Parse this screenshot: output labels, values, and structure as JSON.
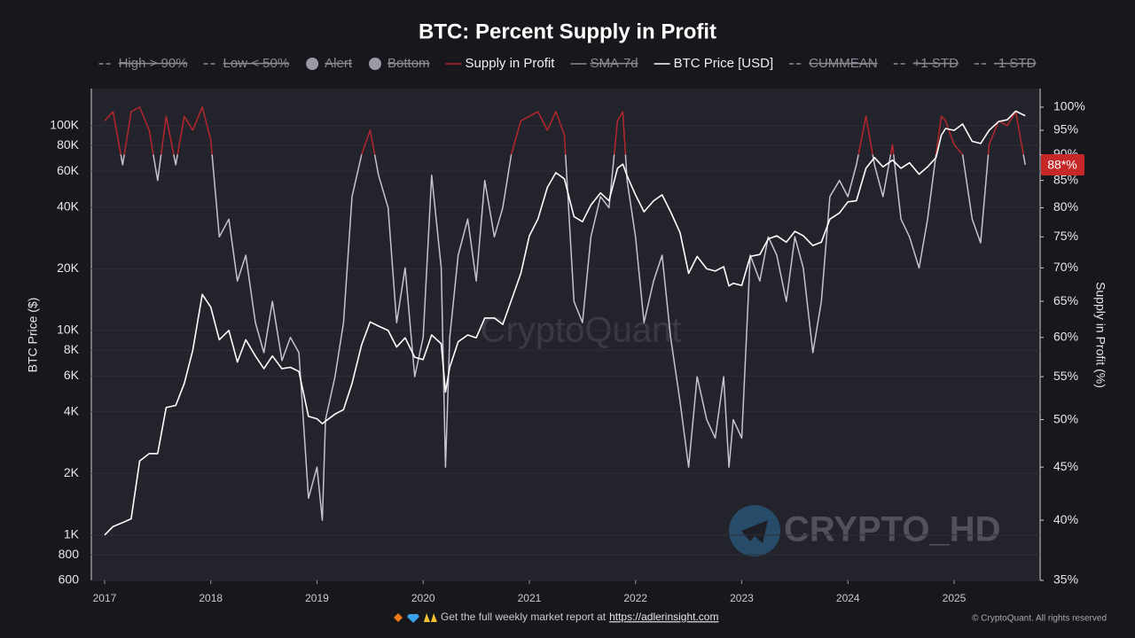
{
  "chart_data": {
    "type": "line",
    "title": "BTC: Percent Supply in Profit",
    "ylabel": "BTC Price ($)",
    "y2label": "Supply in Profit (%)",
    "log_y": true,
    "log_y2": true,
    "grid": true,
    "xlim": [
      2016.875,
      2025.81
    ],
    "xticks": [
      2017,
      2018,
      2019,
      2020,
      2021,
      2022,
      2023,
      2024,
      2025
    ],
    "ylim": [
      600,
      152000
    ],
    "yticks": [
      600,
      800,
      {
        "value": 1000,
        "label": "1K"
      },
      {
        "value": 2000,
        "label": "2K"
      },
      {
        "value": 4000,
        "label": "4K"
      },
      {
        "value": 6000,
        "label": "6K"
      },
      {
        "value": 8000,
        "label": "8K"
      },
      {
        "value": 10000,
        "label": "10K"
      },
      {
        "value": 20000,
        "label": "20K"
      },
      {
        "value": 40000,
        "label": "40K"
      },
      {
        "value": 60000,
        "label": "60K"
      },
      {
        "value": 80000,
        "label": "80K"
      },
      {
        "value": 100000,
        "label": "100K"
      }
    ],
    "y2lim": [
      35,
      104.2
    ],
    "y2ticks": [
      {
        "value": 35,
        "label": "35%"
      },
      {
        "value": 40,
        "label": "40%"
      },
      {
        "value": 45,
        "label": "45%"
      },
      {
        "value": 50,
        "label": "50%"
      },
      {
        "value": 55,
        "label": "55%"
      },
      {
        "value": 60,
        "label": "60%"
      },
      {
        "value": 65,
        "label": "65%"
      },
      {
        "value": 70,
        "label": "70%"
      },
      {
        "value": 75,
        "label": "75%"
      },
      {
        "value": 80,
        "label": "80%"
      },
      {
        "value": 85,
        "label": "85%"
      },
      {
        "value": 90,
        "label": "90%"
      },
      {
        "value": 95,
        "label": "95%"
      },
      {
        "value": 100,
        "label": "100%"
      }
    ],
    "high_threshold": 90,
    "y2_badge": {
      "value": 88,
      "label": "88*%",
      "color": "#c62828"
    },
    "x": [
      2017.0,
      2017.08,
      2017.17,
      2017.25,
      2017.33,
      2017.42,
      2017.5,
      2017.58,
      2017.67,
      2017.75,
      2017.83,
      2017.92,
      2018.0,
      2018.08,
      2018.17,
      2018.25,
      2018.33,
      2018.42,
      2018.5,
      2018.58,
      2018.67,
      2018.75,
      2018.83,
      2018.92,
      2019.0,
      2019.05,
      2019.08,
      2019.17,
      2019.25,
      2019.33,
      2019.42,
      2019.5,
      2019.58,
      2019.67,
      2019.75,
      2019.83,
      2019.92,
      2020.0,
      2020.08,
      2020.17,
      2020.21,
      2020.25,
      2020.33,
      2020.42,
      2020.5,
      2020.58,
      2020.67,
      2020.75,
      2020.83,
      2020.92,
      2021.0,
      2021.08,
      2021.17,
      2021.25,
      2021.33,
      2021.42,
      2021.5,
      2021.58,
      2021.67,
      2021.75,
      2021.83,
      2021.88,
      2021.92,
      2022.0,
      2022.08,
      2022.17,
      2022.25,
      2022.33,
      2022.42,
      2022.5,
      2022.58,
      2022.67,
      2022.75,
      2022.83,
      2022.88,
      2022.92,
      2023.0,
      2023.08,
      2023.17,
      2023.25,
      2023.33,
      2023.42,
      2023.5,
      2023.58,
      2023.67,
      2023.75,
      2023.83,
      2023.92,
      2024.0,
      2024.08,
      2024.17,
      2024.25,
      2024.33,
      2024.42,
      2024.5,
      2024.58,
      2024.67,
      2024.75,
      2024.83,
      2024.88,
      2024.92,
      2025.0,
      2025.08,
      2025.17,
      2025.25,
      2025.33,
      2025.42,
      2025.5,
      2025.58,
      2025.67
    ],
    "series": [
      {
        "name": "High > 90%",
        "color": "#8a8a95",
        "marker": "dash",
        "hidden": true
      },
      {
        "name": "Low < 50%",
        "color": "#8a8a95",
        "marker": "dash",
        "hidden": true
      },
      {
        "name": "Alert",
        "color": "#9a9aa5",
        "marker": "dot",
        "hidden": true
      },
      {
        "name": "Bottom",
        "color": "#9a9aa5",
        "marker": "dot",
        "hidden": true
      },
      {
        "name": "Supply in Profit",
        "color": "#b3262b",
        "below_color": "#c4c4d0",
        "marker": "line",
        "axis": "y2",
        "values": [
          97,
          99,
          88,
          99,
          100,
          95,
          85,
          98,
          88,
          98,
          95,
          100,
          93,
          75,
          78,
          68,
          72,
          62,
          58,
          65,
          57,
          60,
          58,
          42,
          45,
          40,
          50,
          55,
          62,
          82,
          90,
          95,
          86,
          80,
          62,
          70,
          55,
          60,
          86,
          70,
          45,
          60,
          72,
          78,
          68,
          85,
          75,
          80,
          90,
          97,
          98,
          99,
          95,
          99,
          94,
          65,
          62,
          75,
          82,
          80,
          97,
          99,
          85,
          75,
          62,
          68,
          72,
          60,
          52,
          45,
          55,
          50,
          48,
          55,
          45,
          50,
          48,
          72,
          68,
          75,
          72,
          65,
          75,
          70,
          58,
          65,
          82,
          85,
          82,
          88,
          98,
          88,
          82,
          92,
          78,
          75,
          70,
          78,
          90,
          98,
          97,
          92,
          90,
          78,
          74,
          92,
          97,
          96,
          99,
          88
        ]
      },
      {
        "name": "SMA-7d",
        "color": "#8a8a95",
        "marker": "line",
        "hidden": true
      },
      {
        "name": "BTC Price [USD]",
        "color": "#ffffff",
        "marker": "line",
        "values": [
          1000,
          1100,
          1150,
          1200,
          2300,
          2500,
          2500,
          4200,
          4300,
          5500,
          8000,
          15000,
          13000,
          9000,
          10000,
          7000,
          9000,
          7500,
          6500,
          7500,
          6500,
          6600,
          6300,
          3800,
          3700,
          3500,
          3600,
          3900,
          4100,
          5500,
          8500,
          11000,
          10500,
          10000,
          8300,
          9200,
          7400,
          7200,
          9500,
          8600,
          5000,
          6600,
          8800,
          9500,
          9200,
          11500,
          11500,
          10700,
          14000,
          19000,
          29000,
          35000,
          50000,
          59000,
          55000,
          36000,
          34000,
          41000,
          47000,
          43000,
          62000,
          65000,
          57000,
          46000,
          38000,
          43000,
          46000,
          38000,
          30000,
          19000,
          23000,
          20000,
          19500,
          20500,
          16500,
          17000,
          16600,
          23000,
          23500,
          28000,
          29000,
          27000,
          30500,
          29000,
          26000,
          27000,
          35000,
          37500,
          42500,
          43000,
          62000,
          70000,
          63000,
          68000,
          62000,
          66000,
          58000,
          63000,
          70000,
          90000,
          97000,
          95000,
          102000,
          84000,
          82000,
          95000,
          105000,
          107000,
          118000,
          112000
        ]
      },
      {
        "name": "CUMMEAN",
        "color": "#8a8a95",
        "marker": "dash",
        "hidden": true
      },
      {
        "name": "+1 STD",
        "color": "#8a8a95",
        "marker": "dash",
        "hidden": true
      },
      {
        "name": "-1 STD",
        "color": "#8a8a95",
        "marker": "dash",
        "hidden": true
      }
    ]
  },
  "watermarks": {
    "center": "CryptoQuant",
    "badge": "CRYPTO_HD"
  },
  "footer": {
    "text": "Get the full weekly market report at",
    "link": "https://adlerinsight.com",
    "copyright": "© CryptoQuant. All rights reserved"
  }
}
